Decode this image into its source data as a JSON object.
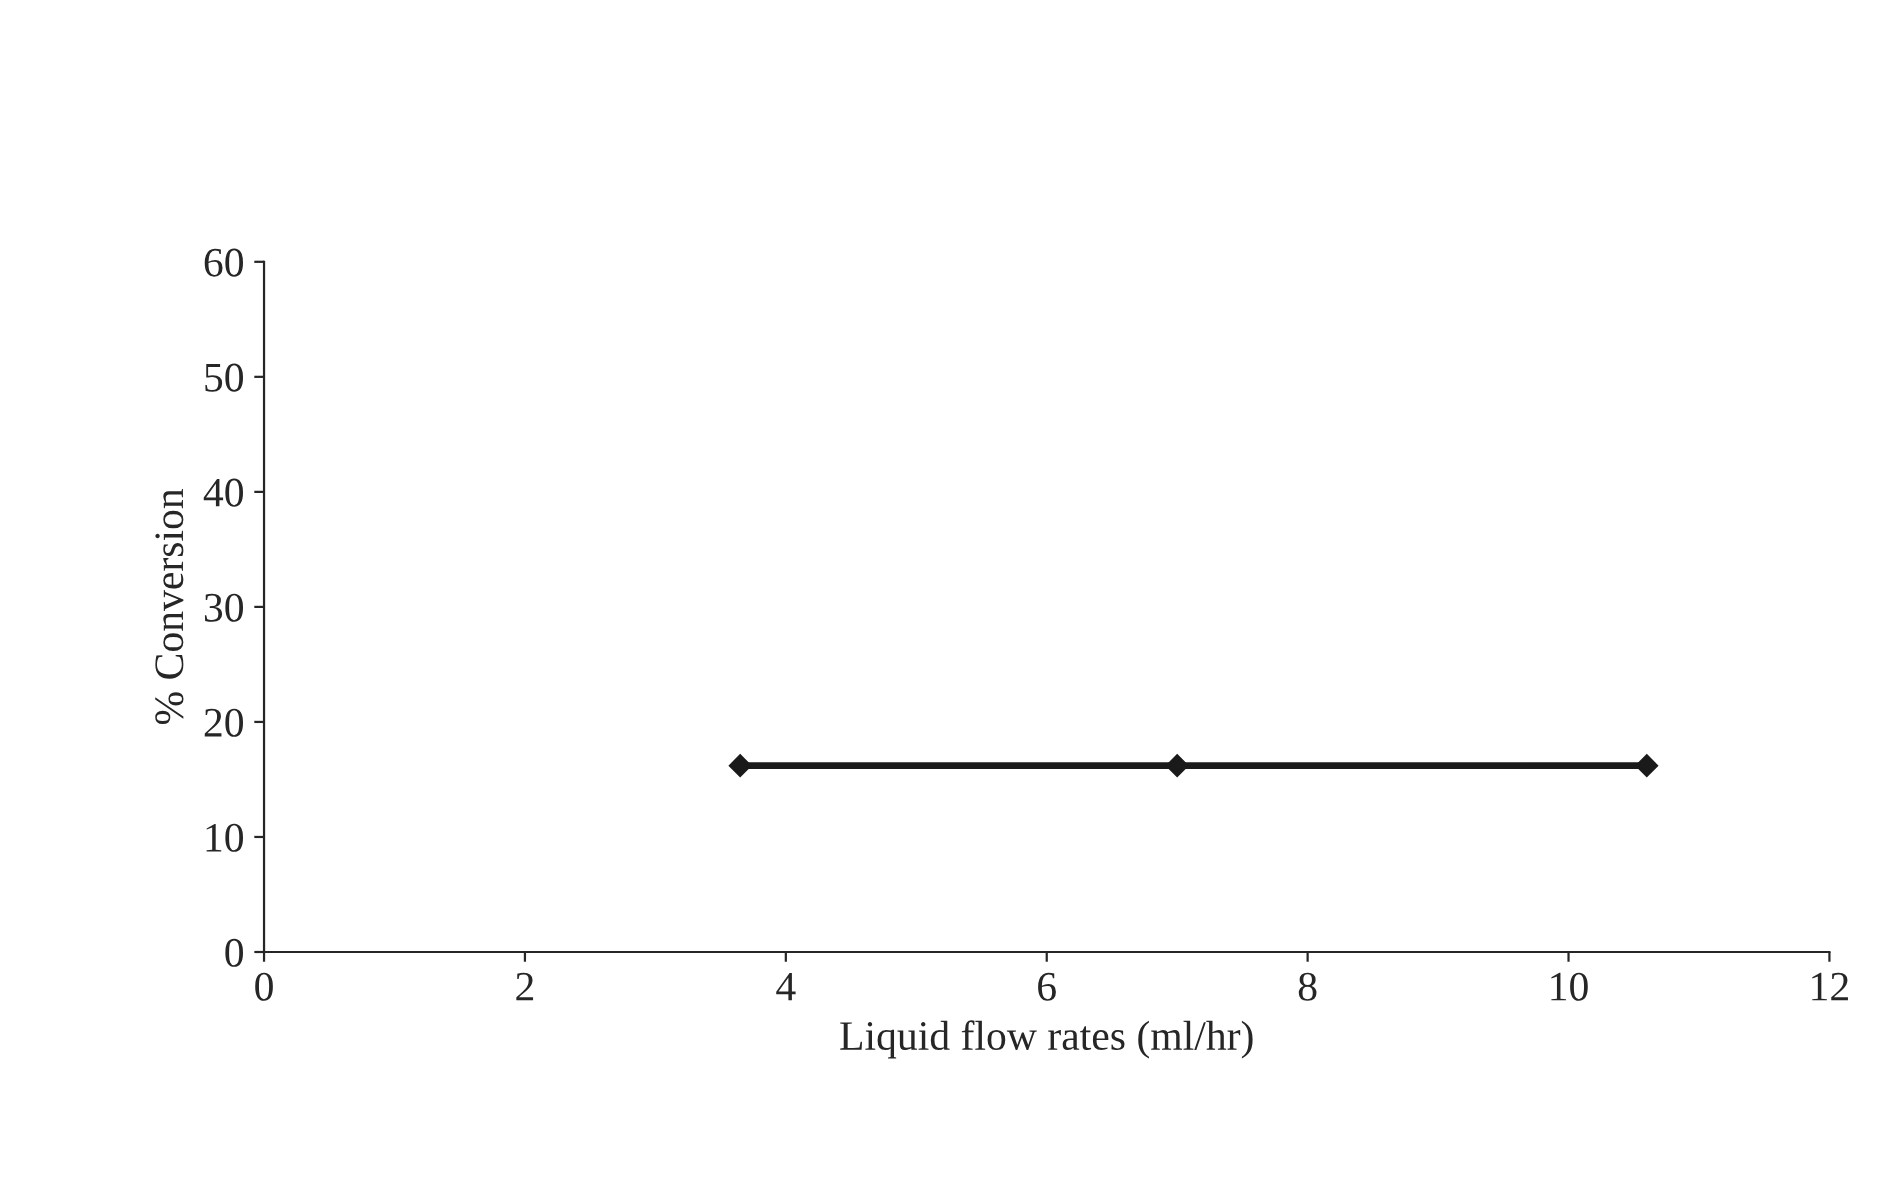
{
  "chart_data": {
    "type": "line",
    "xlabel": "Liquid flow rates (ml/hr)",
    "ylabel": "% Conversion",
    "x": [
      3.65,
      7.0,
      10.6
    ],
    "series": [
      {
        "color": "#1a1a1a",
        "values": [
          16.2,
          16.2,
          16.2
        ]
      }
    ],
    "xlim": [
      0,
      12
    ],
    "xticks": [
      0,
      2,
      4,
      6,
      8,
      10,
      12
    ],
    "ylim": [
      0,
      60
    ],
    "yticks": [
      0,
      10,
      20,
      30,
      40,
      50,
      60
    ],
    "marker": "diamond",
    "line_style": "solid",
    "grid": false,
    "legend": false
  }
}
